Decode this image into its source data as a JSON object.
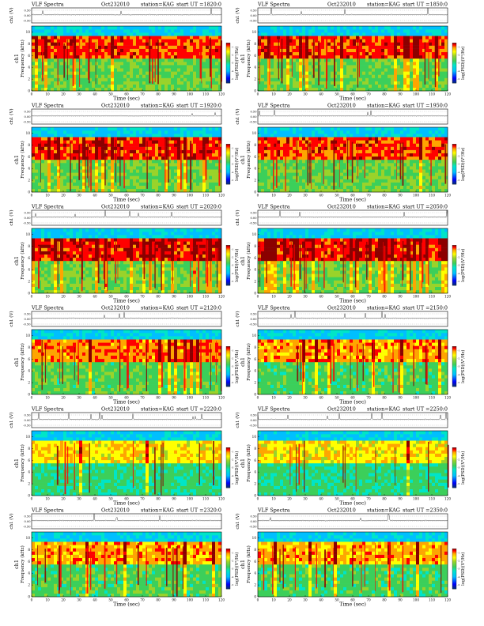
{
  "page": {
    "background": "#ffffff"
  },
  "colors": {
    "spectrogram_scale": [
      "#08306b",
      "#0000ff",
      "#00bfff",
      "#00e5c8",
      "#3ccf5a",
      "#9ad32a",
      "#ffff00",
      "#ffa500",
      "#ff0000",
      "#8b0000"
    ],
    "waveform": "#000000"
  },
  "chart_data": [
    {
      "type": "heatmap",
      "kind": "vlf-spectrogram",
      "title": "VLF Spectra",
      "date": "Oct232010",
      "station": "station=KAG",
      "start_ut": "start UT =1820:0",
      "waveform_ylabel": "ch1 (V)",
      "waveform_ticks": [
        "0.50",
        "0.00",
        "-0.50"
      ],
      "xlabel": "Time (sec)",
      "ylabel_top": "ch1",
      "ylabel": "Frequency (kHz)",
      "x_ticks": [
        0,
        10,
        20,
        30,
        40,
        50,
        60,
        70,
        80,
        90,
        100,
        110,
        120
      ],
      "y_ticks": [
        0,
        2,
        4,
        6,
        8,
        10
      ],
      "xlim": [
        0,
        120
      ],
      "ylim": [
        0,
        11
      ],
      "colorbar_label": "log(PSD)(V²/Hz)",
      "colorbar_ticks": [
        "-1",
        "-2",
        "-3",
        "-4",
        "-5"
      ],
      "activity": 0.8
    },
    {
      "type": "heatmap",
      "kind": "vlf-spectrogram",
      "title": "VLF Spectra",
      "date": "Oct232010",
      "station": "station=KAG",
      "start_ut": "start UT =1850:0",
      "waveform_ylabel": "ch1 (V)",
      "waveform_ticks": [
        "0.50",
        "0.00",
        "-0.50"
      ],
      "xlabel": "Time (sec)",
      "ylabel_top": "ch1",
      "ylabel": "Frequency (kHz)",
      "x_ticks": [
        0,
        10,
        20,
        30,
        40,
        50,
        60,
        70,
        80,
        90,
        100,
        110,
        120
      ],
      "y_ticks": [
        0,
        2,
        4,
        6,
        8,
        10
      ],
      "xlim": [
        0,
        120
      ],
      "ylim": [
        0,
        11
      ],
      "colorbar_label": "log(PSD)(V²/Hz)",
      "colorbar_ticks": [
        "-1",
        "-2",
        "-3",
        "-4",
        "-5"
      ],
      "activity": 0.8
    },
    {
      "type": "heatmap",
      "kind": "vlf-spectrogram",
      "title": "VLF Spectra",
      "date": "Oct232010",
      "station": "station=KAG",
      "start_ut": "start UT =1920:0",
      "waveform_ylabel": "ch1 (V)",
      "waveform_ticks": [
        "0.50",
        "0.00",
        "-0.50"
      ],
      "xlabel": "Time (sec)",
      "ylabel_top": "ch1",
      "ylabel": "Frequency (kHz)",
      "x_ticks": [
        0,
        10,
        20,
        30,
        40,
        50,
        60,
        70,
        80,
        90,
        100,
        110,
        120
      ],
      "y_ticks": [
        0,
        2,
        4,
        6,
        8,
        10
      ],
      "xlim": [
        0,
        120
      ],
      "ylim": [
        0,
        11
      ],
      "colorbar_label": "log(PSD)(V²/Hz)",
      "colorbar_ticks": [
        "-1",
        "-2",
        "-3",
        "-4",
        "-5"
      ],
      "activity": 0.85
    },
    {
      "type": "heatmap",
      "kind": "vlf-spectrogram",
      "title": "VLF Spectra",
      "date": "Oct232010",
      "station": "station=KAG",
      "start_ut": "start UT =1950:0",
      "waveform_ylabel": "ch1 (V)",
      "waveform_ticks": [
        "0.50",
        "0.00",
        "-0.50"
      ],
      "xlabel": "Time (sec)",
      "ylabel_top": "ch1",
      "ylabel": "Frequency (kHz)",
      "x_ticks": [
        0,
        10,
        20,
        30,
        40,
        50,
        60,
        70,
        80,
        90,
        100,
        110,
        120
      ],
      "y_ticks": [
        0,
        2,
        4,
        6,
        8,
        10
      ],
      "xlim": [
        0,
        120
      ],
      "ylim": [
        0,
        11
      ],
      "colorbar_label": "log(PSD)(V²/Hz)",
      "colorbar_ticks": [
        "-1",
        "-2",
        "-3",
        "-4",
        "-5"
      ],
      "activity": 0.8
    },
    {
      "type": "heatmap",
      "kind": "vlf-spectrogram",
      "title": "VLF Spectra",
      "date": "Oct232010",
      "station": "station=KAG",
      "start_ut": "start UT =2020:0",
      "waveform_ylabel": "ch1 (V)",
      "waveform_ticks": [
        "0.50",
        "0.00",
        "-0.50"
      ],
      "xlabel": "Time (sec)",
      "ylabel_top": "ch1",
      "ylabel": "Frequency (kHz)",
      "x_ticks": [
        0,
        10,
        20,
        30,
        40,
        50,
        60,
        70,
        80,
        90,
        100,
        110,
        120
      ],
      "y_ticks": [
        0,
        2,
        4,
        6,
        8,
        10
      ],
      "xlim": [
        0,
        120
      ],
      "ylim": [
        0,
        11
      ],
      "colorbar_label": "log(PSD)(V²/Hz)",
      "colorbar_ticks": [
        "-1",
        "-2",
        "-3",
        "-4",
        "-5"
      ],
      "activity": 0.9
    },
    {
      "type": "heatmap",
      "kind": "vlf-spectrogram",
      "title": "VLF Spectra",
      "date": "Oct232010",
      "station": "station=KAG",
      "start_ut": "start UT =2050:0",
      "waveform_ylabel": "ch1 (V)",
      "waveform_ticks": [
        "0.50",
        "0.00",
        "-0.50"
      ],
      "xlabel": "Time (sec)",
      "ylabel_top": "ch1",
      "ylabel": "Frequency (kHz)",
      "x_ticks": [
        0,
        10,
        20,
        30,
        40,
        50,
        60,
        70,
        80,
        90,
        100,
        110,
        120
      ],
      "y_ticks": [
        0,
        2,
        4,
        6,
        8,
        10
      ],
      "xlim": [
        0,
        120
      ],
      "ylim": [
        0,
        11
      ],
      "colorbar_label": "log(PSD)(V²/Hz)",
      "colorbar_ticks": [
        "-1",
        "-2",
        "-3",
        "-4",
        "-5"
      ],
      "activity": 0.9
    },
    {
      "type": "heatmap",
      "kind": "vlf-spectrogram",
      "title": "VLF Spectra",
      "date": "Oct232010",
      "station": "station=KAG",
      "start_ut": "start UT =2120:0",
      "waveform_ylabel": "ch1 (V)",
      "waveform_ticks": [
        "0.50",
        "0.00",
        "-0.50"
      ],
      "xlabel": "Time (sec)",
      "ylabel_top": "ch1",
      "ylabel": "Frequency (kHz)",
      "x_ticks": [
        0,
        10,
        20,
        30,
        40,
        50,
        60,
        70,
        80,
        90,
        100,
        110,
        120
      ],
      "y_ticks": [
        0,
        2,
        4,
        6,
        8,
        10
      ],
      "xlim": [
        0,
        120
      ],
      "ylim": [
        0,
        11
      ],
      "colorbar_label": "log(PSD)(V²/Hz)",
      "colorbar_ticks": [
        "-1",
        "-2",
        "-3",
        "-4",
        "-5"
      ],
      "activity": 0.65
    },
    {
      "type": "heatmap",
      "kind": "vlf-spectrogram",
      "title": "VLF Spectra",
      "date": "Oct232010",
      "station": "station=KAG",
      "start_ut": "start UT =2150:0",
      "waveform_ylabel": "ch1 (V)",
      "waveform_ticks": [
        "0.50",
        "0.00",
        "-0.50"
      ],
      "xlabel": "Time (sec)",
      "ylabel_top": "ch1",
      "ylabel": "Frequency (kHz)",
      "x_ticks": [
        0,
        10,
        20,
        30,
        40,
        50,
        60,
        70,
        80,
        90,
        100,
        110,
        120
      ],
      "y_ticks": [
        0,
        2,
        4,
        6,
        8,
        10
      ],
      "xlim": [
        0,
        120
      ],
      "ylim": [
        0,
        11
      ],
      "colorbar_label": "log(PSD)(V²/Hz)",
      "colorbar_ticks": [
        "-1",
        "-2",
        "-3",
        "-4",
        "-5"
      ],
      "activity": 0.55
    },
    {
      "type": "heatmap",
      "kind": "vlf-spectrogram",
      "title": "VLF Spectra",
      "date": "Oct232010",
      "station": "station=KAG",
      "start_ut": "start UT =2220:0",
      "waveform_ylabel": "ch1 (V)",
      "waveform_ticks": [
        "0.50",
        "0.00",
        "-0.50"
      ],
      "xlabel": "Time (sec)",
      "ylabel_top": "ch1",
      "ylabel": "Frequency (kHz)",
      "x_ticks": [
        0,
        10,
        20,
        30,
        40,
        50,
        60,
        70,
        80,
        90,
        100,
        110,
        120
      ],
      "y_ticks": [
        0,
        2,
        4,
        6,
        8,
        10
      ],
      "xlim": [
        0,
        120
      ],
      "ylim": [
        0,
        11
      ],
      "colorbar_label": "log(PSD)(V²/Hz)",
      "colorbar_ticks": [
        "-1",
        "-2",
        "-3",
        "-4",
        "-5"
      ],
      "activity": 0.3
    },
    {
      "type": "heatmap",
      "kind": "vlf-spectrogram",
      "title": "VLF Spectra",
      "date": "Oct232010",
      "station": "station=KAG",
      "start_ut": "start UT =2250:0",
      "waveform_ylabel": "ch1 (V)",
      "waveform_ticks": [
        "0.50",
        "0.00",
        "-0.50"
      ],
      "xlabel": "Time (sec)",
      "ylabel_top": "ch1",
      "ylabel": "Frequency (kHz)",
      "x_ticks": [
        0,
        10,
        20,
        30,
        40,
        50,
        60,
        70,
        80,
        90,
        100,
        110,
        120
      ],
      "y_ticks": [
        0,
        2,
        4,
        6,
        8,
        10
      ],
      "xlim": [
        0,
        120
      ],
      "ylim": [
        0,
        11
      ],
      "colorbar_label": "log(PSD)(V²/Hz)",
      "colorbar_ticks": [
        "-1",
        "-2",
        "-3",
        "-4",
        "-5"
      ],
      "activity": 0.3
    },
    {
      "type": "heatmap",
      "kind": "vlf-spectrogram",
      "title": "VLF Spectra",
      "date": "Oct232010",
      "station": "station=KAG",
      "start_ut": "start UT =2320:0",
      "waveform_ylabel": "ch1 (V)",
      "waveform_ticks": [
        "0.50",
        "0.00",
        "-0.50"
      ],
      "xlabel": "Time (sec)",
      "ylabel_top": "ch1",
      "ylabel": "Frequency (kHz)",
      "x_ticks": [
        0,
        10,
        20,
        30,
        40,
        50,
        60,
        70,
        80,
        90,
        100,
        110,
        120
      ],
      "y_ticks": [
        0,
        2,
        4,
        6,
        8,
        10
      ],
      "xlim": [
        0,
        120
      ],
      "ylim": [
        0,
        11
      ],
      "colorbar_label": "log(PSD)(V²/Hz)",
      "colorbar_ticks": [
        "-1",
        "-2",
        "-3",
        "-4",
        "-5"
      ],
      "activity": 0.55
    },
    {
      "type": "heatmap",
      "kind": "vlf-spectrogram",
      "title": "VLF Spectra",
      "date": "Oct232010",
      "station": "station=KAG",
      "start_ut": "start UT =2350:0",
      "waveform_ylabel": "ch1 (V)",
      "waveform_ticks": [
        "0.50",
        "0.00",
        "-0.50"
      ],
      "xlabel": "Time (sec)",
      "ylabel_top": "ch1",
      "ylabel": "Frequency (kHz)",
      "x_ticks": [
        0,
        10,
        20,
        30,
        40,
        50,
        60,
        70,
        80,
        90,
        100,
        110,
        120
      ],
      "y_ticks": [
        0,
        2,
        4,
        6,
        8,
        10
      ],
      "xlim": [
        0,
        120
      ],
      "ylim": [
        0,
        11
      ],
      "colorbar_label": "log(PSD)(V²/Hz)",
      "colorbar_ticks": [
        "-1",
        "-2",
        "-3",
        "-4",
        "-5"
      ],
      "activity": 0.5
    }
  ]
}
